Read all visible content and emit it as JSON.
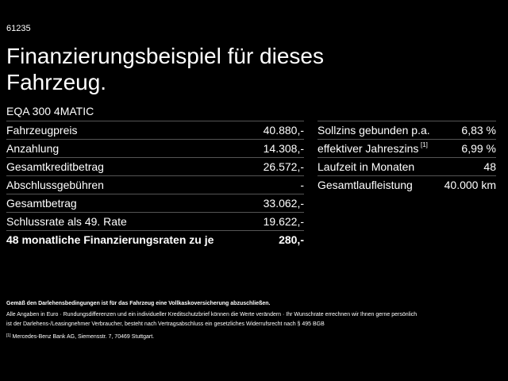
{
  "header": {
    "id": "61235",
    "title": "Finanzierungsbeispiel für dieses Fahrzeug.",
    "model": "EQA 300 4MATIC"
  },
  "left_table": {
    "rows": [
      [
        "Fahrzeugpreis",
        "40.880,-"
      ],
      [
        "Anzahlung",
        "14.308,-"
      ],
      [
        "Gesamtkreditbetrag",
        "26.572,-"
      ],
      [
        "Abschlussgebühren",
        "-"
      ],
      [
        "Gesamtbetrag",
        "33.062,-"
      ],
      [
        "Schlussrate als 49. Rate",
        "19.622,-"
      ],
      [
        "48 monatliche Finanzierungsraten zu je",
        "280,-"
      ]
    ]
  },
  "right_table": {
    "rows": [
      [
        "Sollzins gebunden p.a.",
        "6,83 %"
      ],
      [
        "effektiver Jahreszins",
        "6,99 %"
      ],
      [
        "Laufzeit in Monaten",
        "48"
      ],
      [
        "Gesamtlaufleistung",
        "40.000 km"
      ]
    ],
    "footnote_marker": "[1]"
  },
  "footer": {
    "notice": "Gemäß den Darlehensbedingungen ist für das Fahrzeug eine Vollkaskoversicherung abzuschließen.",
    "details": [
      "Alle Angaben in Euro · Rundungsdifferenzen und ein individueller Kreditschutzbrief können die Werte verändern · Ihr Wunschrate errechnen wir Ihnen gerne persönlich",
      "ist der Darlehens-/Leasingnehmer Verbraucher, besteht nach Vertragsabschluss ein gesetzliches Widerrufsrecht nach § 495 BGB"
    ],
    "footnote_marker": "[1]",
    "footnote": "Mercedes-Benz Bank AG, Siemensstr. 7, 70469 Stuttgart."
  }
}
